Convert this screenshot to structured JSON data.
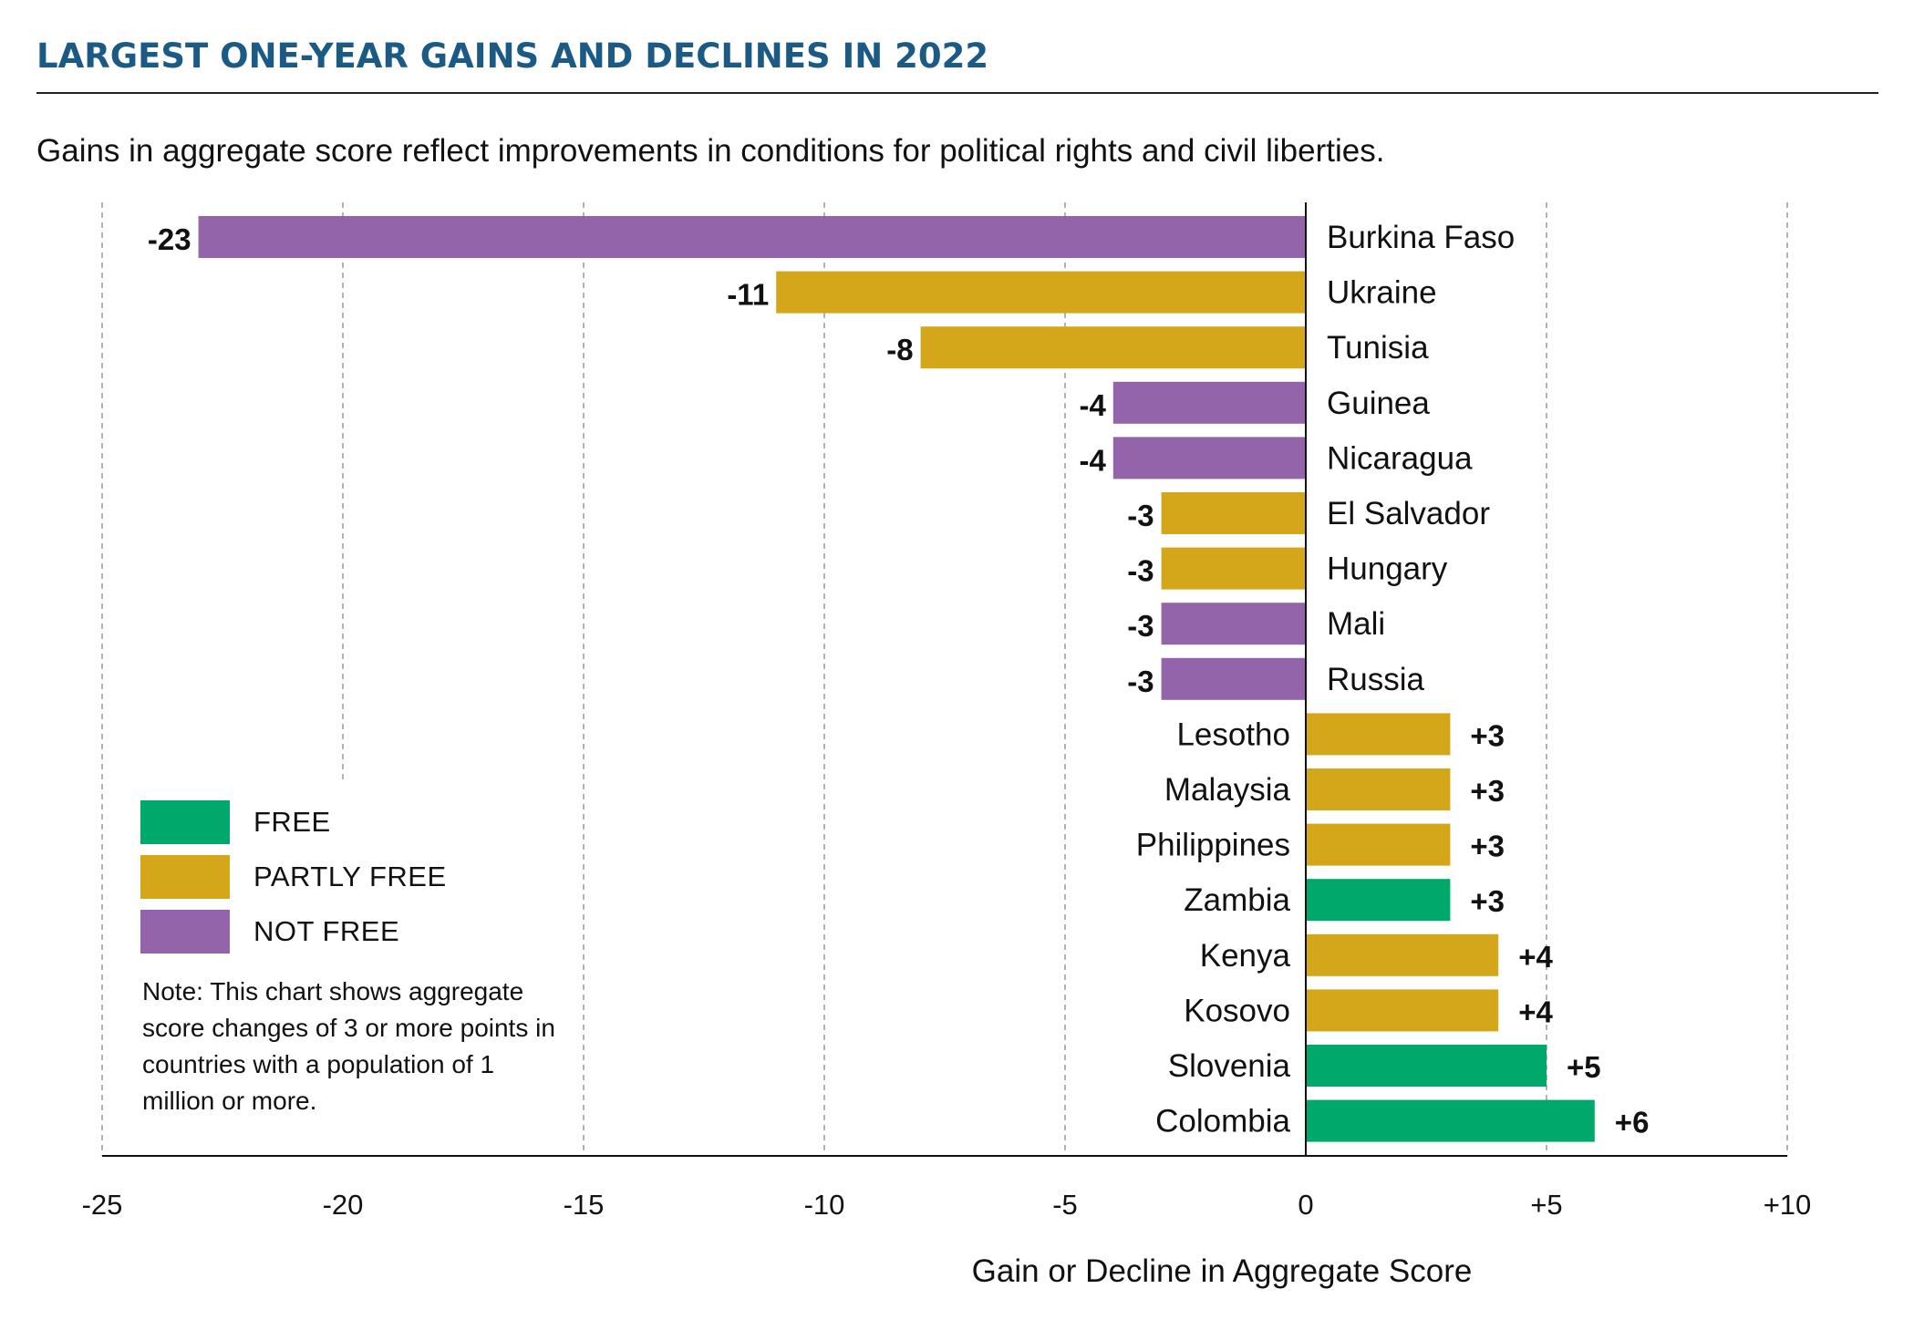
{
  "title": "LARGEST ONE-YEAR GAINS AND DECLINES IN 2022",
  "subtitle": "Gains in aggregate score reflect improvements in conditions for political rights and civil liberties.",
  "colors": {
    "title": "#1c5a86",
    "FREE": "#00a86b",
    "PARTLY FREE": "#d4a61a",
    "NOT FREE": "#9364aa",
    "grid": "#9a9a9a",
    "axis": "#111111"
  },
  "legend": [
    {
      "label": "FREE",
      "status": "FREE"
    },
    {
      "label": "PARTLY FREE",
      "status": "PARTLY FREE"
    },
    {
      "label": "NOT FREE",
      "status": "NOT FREE"
    }
  ],
  "note": "Note: This chart shows aggregate score changes of 3 or more points in countries with a population of 1 million or more.",
  "chart_data": {
    "type": "bar",
    "orientation": "horizontal",
    "xlabel": "Gain or Decline in Aggregate Score",
    "xlim": [
      -25,
      10
    ],
    "xticks": [
      -25,
      -20,
      -15,
      -10,
      -5,
      0,
      5,
      10
    ],
    "xtick_labels": [
      "-25",
      "-20",
      "-15",
      "-10",
      "-5",
      "0",
      "+5",
      "+10"
    ],
    "grid": true,
    "legend_position": "bottom-left",
    "categories": [
      "Burkina Faso",
      "Ukraine",
      "Tunisia",
      "Guinea",
      "Nicaragua",
      "El Salvador",
      "Hungary",
      "Mali",
      "Russia",
      "Lesotho",
      "Malaysia",
      "Philippines",
      "Zambia",
      "Kenya",
      "Kosovo",
      "Slovenia",
      "Colombia"
    ],
    "values": [
      -23,
      -11,
      -8,
      -4,
      -4,
      -3,
      -3,
      -3,
      -3,
      3,
      3,
      3,
      3,
      4,
      4,
      5,
      6
    ],
    "value_labels": [
      "-23",
      "-11",
      "-8",
      "-4",
      "-4",
      "-3",
      "-3",
      "-3",
      "-3",
      "+3",
      "+3",
      "+3",
      "+3",
      "+4",
      "+4",
      "+5",
      "+6"
    ],
    "status": [
      "NOT FREE",
      "PARTLY FREE",
      "PARTLY FREE",
      "NOT FREE",
      "NOT FREE",
      "PARTLY FREE",
      "PARTLY FREE",
      "NOT FREE",
      "NOT FREE",
      "PARTLY FREE",
      "PARTLY FREE",
      "PARTLY FREE",
      "FREE",
      "PARTLY FREE",
      "PARTLY FREE",
      "FREE",
      "FREE"
    ]
  }
}
